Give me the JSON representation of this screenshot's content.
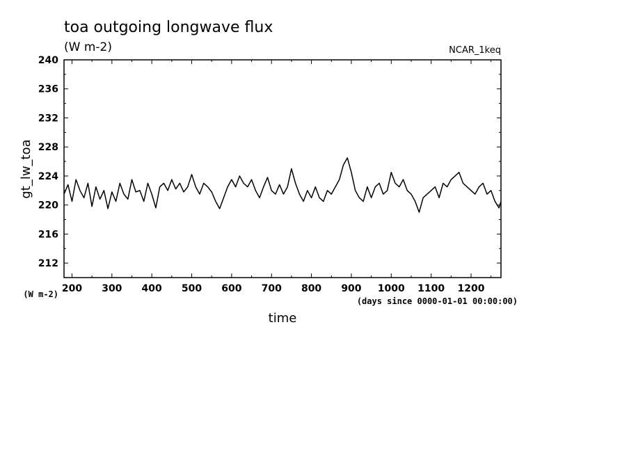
{
  "chart_data": {
    "type": "line",
    "title": "toa outgoing longwave flux",
    "subtitle": "(W m-2)",
    "tag": "NCAR_1keq",
    "ylabel": "gt_lw_toa",
    "yunits": "(W m-2)",
    "xlabel": "time",
    "xunits": "(days since 0000-01-01 00:00:00)",
    "xlim": [
      180,
      1275
    ],
    "ylim": [
      210,
      240
    ],
    "x_ticks": [
      200,
      300,
      400,
      500,
      600,
      700,
      800,
      900,
      1000,
      1100,
      1200
    ],
    "y_ticks": [
      212,
      216,
      220,
      224,
      228,
      232,
      236,
      240
    ],
    "grid": false,
    "legend": "none",
    "series": [
      {
        "x": [
          180,
          190,
          200,
          210,
          220,
          230,
          240,
          250,
          260,
          270,
          280,
          290,
          300,
          310,
          320,
          330,
          340,
          350,
          360,
          370,
          380,
          390,
          400,
          410,
          420,
          430,
          440,
          450,
          460,
          470,
          480,
          490,
          500,
          510,
          520,
          530,
          540,
          550,
          560,
          570,
          580,
          590,
          600,
          610,
          620,
          630,
          640,
          650,
          660,
          670,
          680,
          690,
          700,
          710,
          720,
          730,
          740,
          750,
          760,
          770,
          780,
          790,
          800,
          810,
          820,
          830,
          840,
          850,
          860,
          870,
          880,
          890,
          900,
          910,
          920,
          930,
          940,
          950,
          960,
          970,
          980,
          990,
          1000,
          1010,
          1020,
          1030,
          1040,
          1050,
          1060,
          1070,
          1080,
          1090,
          1100,
          1110,
          1120,
          1130,
          1140,
          1150,
          1160,
          1170,
          1180,
          1190,
          1200,
          1210,
          1220,
          1230,
          1240,
          1250,
          1260,
          1270,
          1275
        ],
        "y": [
          221.5,
          222.8,
          220.5,
          223.5,
          222,
          221,
          223,
          219.8,
          222.5,
          220.8,
          222,
          219.5,
          221.8,
          220.5,
          223,
          221.5,
          220.8,
          223.5,
          221.8,
          222,
          220.5,
          223,
          221.5,
          219.6,
          222.5,
          223,
          222,
          223.5,
          222.2,
          223,
          221.8,
          222.5,
          224.2,
          222.5,
          221.5,
          223,
          222.5,
          221.8,
          220.5,
          219.5,
          221,
          222.5,
          223.5,
          222.5,
          224,
          223,
          222.5,
          223.5,
          222,
          221,
          222.5,
          223.8,
          222,
          221.5,
          222.8,
          221.5,
          222.5,
          225,
          223,
          221.5,
          220.5,
          222,
          221,
          222.5,
          221,
          220.5,
          222,
          221.5,
          222.5,
          223.5,
          225.5,
          226.5,
          224.5,
          222,
          221,
          220.5,
          222.5,
          221,
          222.5,
          223,
          221.5,
          222,
          224.5,
          223,
          222.5,
          223.5,
          222,
          221.5,
          220.5,
          219,
          221,
          221.5,
          222,
          222.5,
          221,
          223,
          222.5,
          223.5,
          224,
          224.5,
          223,
          222.5,
          222,
          221.5,
          222.5,
          223,
          221.5,
          222,
          220.5,
          219.6,
          220.5
        ]
      }
    ]
  }
}
